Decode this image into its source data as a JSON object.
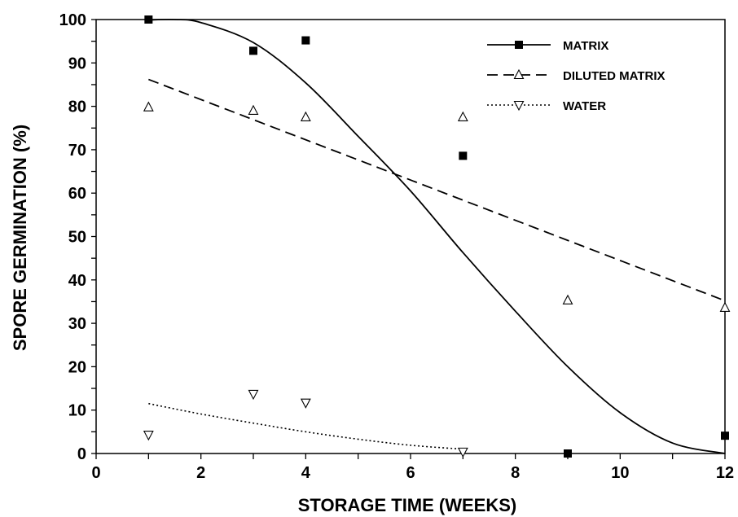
{
  "chart_data": {
    "type": "scatter",
    "xlabel": "STORAGE TIME (WEEKS)",
    "ylabel": "SPORE GERMINATION (%)",
    "xlim": [
      0,
      12
    ],
    "ylim": [
      0,
      100
    ],
    "x_ticks": [
      "0",
      "2",
      "4",
      "6",
      "8",
      "10",
      "12"
    ],
    "y_ticks": [
      "0",
      "10",
      "20",
      "30",
      "40",
      "50",
      "60",
      "70",
      "80",
      "90",
      "100"
    ],
    "grid": false,
    "legend_position": "top-right",
    "series": [
      {
        "name": "MATRIX",
        "marker": "filled-square",
        "line_style": "solid",
        "points": [
          [
            1,
            100
          ],
          [
            3,
            92.8
          ],
          [
            4,
            95.2
          ],
          [
            7,
            68.6
          ],
          [
            9,
            0
          ],
          [
            12,
            4.1
          ]
        ],
        "fit_curve": [
          [
            1,
            99.9
          ],
          [
            1.5,
            100.0
          ],
          [
            2,
            99.3
          ],
          [
            3,
            94.7
          ],
          [
            4,
            85.4
          ],
          [
            5,
            73.1
          ],
          [
            6,
            60.5
          ],
          [
            7,
            46.3
          ],
          [
            8,
            32.8
          ],
          [
            9,
            20.0
          ],
          [
            10,
            9.4
          ],
          [
            11,
            2.4
          ],
          [
            12,
            0.0
          ]
        ]
      },
      {
        "name": "DILUTED MATRIX",
        "marker": "open-triangle-up",
        "line_style": "dashed",
        "points": [
          [
            1,
            79.8
          ],
          [
            3,
            79.0
          ],
          [
            4,
            77.5
          ],
          [
            7,
            77.5
          ],
          [
            9,
            35.3
          ],
          [
            12,
            33.6
          ]
        ],
        "fit_line": [
          [
            1,
            86.2
          ],
          [
            12,
            35.2
          ]
        ]
      },
      {
        "name": "WATER",
        "marker": "open-triangle-down",
        "line_style": "dotted",
        "points": [
          [
            1,
            4.3
          ],
          [
            3,
            13.7
          ],
          [
            4,
            11.7
          ],
          [
            7,
            0.4
          ]
        ],
        "fit_curve": [
          [
            1,
            11.5
          ],
          [
            2,
            9.1
          ],
          [
            3,
            7.0
          ],
          [
            4,
            5.0
          ],
          [
            5,
            3.3
          ],
          [
            6,
            1.9
          ],
          [
            7,
            1.0
          ]
        ]
      }
    ]
  },
  "colors": {
    "ink": "#000000",
    "background": "#ffffff"
  }
}
